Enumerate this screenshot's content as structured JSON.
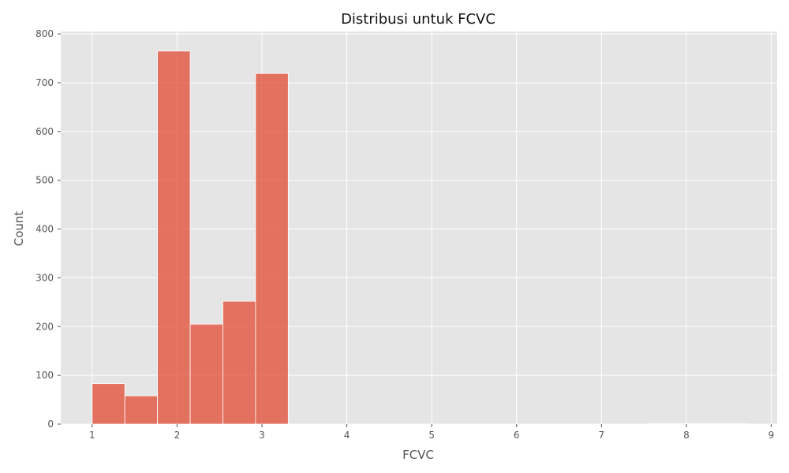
{
  "chart_data": {
    "type": "bar",
    "title": "Distribusi untuk FCVC",
    "xlabel": "FCVC",
    "ylabel": "Count",
    "xlim": [
      0.63,
      9.07
    ],
    "ylim": [
      0,
      805
    ],
    "x_ticks": [
      "1",
      "2",
      "3",
      "4",
      "5",
      "6",
      "7",
      "8",
      "9"
    ],
    "y_ticks": [
      "0",
      "100",
      "200",
      "300",
      "400",
      "500",
      "600",
      "700",
      "800"
    ],
    "grid": true,
    "bins": [
      {
        "x0": 1.0,
        "x1": 1.385,
        "count": 83
      },
      {
        "x0": 1.385,
        "x1": 1.77,
        "count": 58
      },
      {
        "x0": 1.77,
        "x1": 2.155,
        "count": 765
      },
      {
        "x0": 2.155,
        "x1": 2.54,
        "count": 205
      },
      {
        "x0": 2.54,
        "x1": 2.925,
        "count": 252
      },
      {
        "x0": 2.925,
        "x1": 3.31,
        "count": 719
      },
      {
        "x0": 7.545,
        "x1": 7.93,
        "count": 1
      },
      {
        "x0": 7.93,
        "x1": 8.315,
        "count": 1
      },
      {
        "x0": 8.315,
        "x1": 8.7,
        "count": 1
      }
    ],
    "colors": {
      "bar": "#E24A33",
      "plot_bg": "#E5E5E5",
      "grid": "#FFFFFF"
    }
  }
}
